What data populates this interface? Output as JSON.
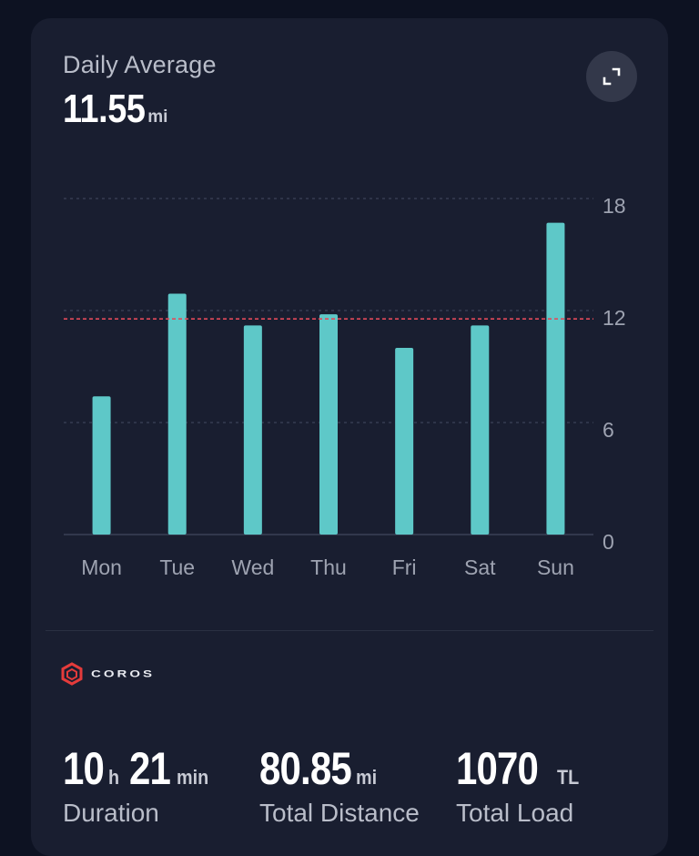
{
  "header": {
    "title": "Daily Average",
    "average_value": "11.55",
    "average_unit": "mi"
  },
  "icons": {
    "expand": "expand-icon",
    "brand": "coros-logo-icon"
  },
  "colors": {
    "bar": "#5ec8c8",
    "average_line": "#e24a5a",
    "background": "#191e30",
    "grid": "#3a4055"
  },
  "chart_data": {
    "type": "bar",
    "categories": [
      "Mon",
      "Tue",
      "Wed",
      "Thu",
      "Fri",
      "Sat",
      "Sun"
    ],
    "values": [
      7.4,
      12.9,
      11.2,
      11.8,
      10.0,
      11.2,
      16.7
    ],
    "yticks": [
      "18",
      "12",
      "6",
      "0"
    ],
    "ylim": [
      0,
      18
    ],
    "average_line": 11.55,
    "grid": true,
    "y_axis_position": "right"
  },
  "brand": {
    "name": "COROS"
  },
  "stats": {
    "duration": {
      "hours": "10",
      "hours_unit": "h",
      "minutes": "21",
      "minutes_unit": "min",
      "label": "Duration"
    },
    "distance": {
      "value": "80.85",
      "unit": "mi",
      "label": "Total Distance"
    },
    "load": {
      "value": "1070",
      "unit": "TL",
      "label": "Total Load"
    }
  }
}
